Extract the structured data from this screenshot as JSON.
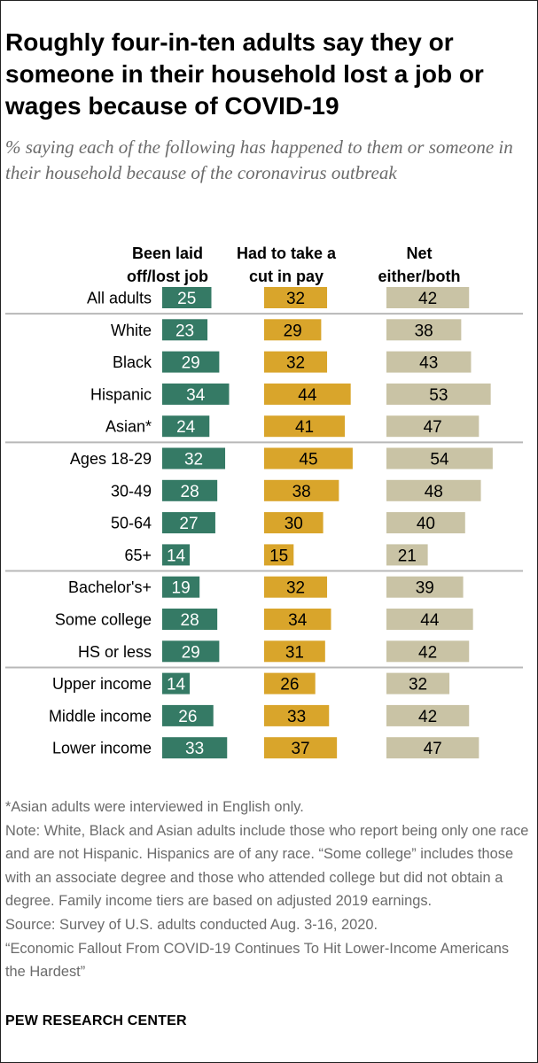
{
  "title": "Roughly four-in-ten adults say they or someone in their household lost a job or wages because of COVID-19",
  "subtitle": "% saying each of the following has happened to them or someone in their household because of the coronavirus outbreak",
  "notes": {
    "asterisk": "*Asian adults were interviewed in English only.",
    "note": "Note: White, Black and Asian adults include those who report being only one race and are not Hispanic. Hispanics are of any race. “Some college” includes those with an associate degree and those who attended college but did not obtain a degree. Family income tiers are based on adjusted 2019 earnings.",
    "source": "Source: Survey of U.S. adults conducted Aug. 3-16, 2020.",
    "report": "“Economic Fallout From COVID-19 Continues To Hit Lower-Income Americans the Hardest”"
  },
  "footer": {
    "org": "PEW RESEARCH CENTER"
  },
  "chart_data": {
    "type": "bar",
    "colors": {
      "laid_off": "#357a65",
      "pay_cut": "#d9a52b",
      "net": "#c9c3a5",
      "divider": "#b8b8b8",
      "label_dark_bg": "#ffffff",
      "label_light_bg": "#000000"
    },
    "categories": [
      "All adults",
      "White",
      "Black",
      "Hispanic",
      "Asian*",
      "Ages 18-29",
      "30-49",
      "50-64",
      "65+",
      "Bachelor's+",
      "Some college",
      "HS or less",
      "Upper income",
      "Middle income",
      "Lower income"
    ],
    "group_breaks_after": [
      0,
      4,
      8,
      11
    ],
    "series": [
      {
        "name": "Been laid off/lost job",
        "name_lines": [
          "Been laid",
          "off/lost job"
        ],
        "values": [
          25,
          23,
          29,
          34,
          24,
          32,
          28,
          27,
          14,
          19,
          28,
          29,
          14,
          26,
          33
        ]
      },
      {
        "name": "Had to take a cut in pay",
        "name_lines": [
          "Had to take a",
          "cut in pay"
        ],
        "values": [
          32,
          29,
          32,
          44,
          41,
          45,
          38,
          30,
          15,
          32,
          34,
          31,
          26,
          33,
          37
        ]
      },
      {
        "name": "Net either/both",
        "name_lines": [
          "Net",
          "either/both"
        ],
        "values": [
          42,
          38,
          43,
          53,
          47,
          54,
          48,
          40,
          21,
          39,
          44,
          42,
          32,
          42,
          47
        ]
      }
    ]
  }
}
